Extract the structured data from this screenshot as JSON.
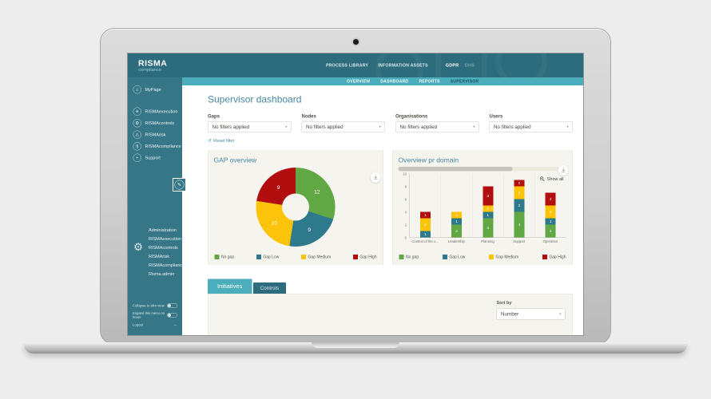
{
  "header": {
    "logo": {
      "title": "RISMA",
      "subtitle": "compliance"
    },
    "nav": [
      "PROCESS LIBRARY",
      "INFORMATION ASSETS"
    ],
    "solutions": [
      {
        "label": "GDPR",
        "active": true
      },
      {
        "label": "OHS",
        "active": false
      }
    ]
  },
  "subnav": {
    "items": [
      {
        "label": "OVERVIEW",
        "active": false
      },
      {
        "label": "DASHBOARD",
        "active": false
      },
      {
        "label": "REPORTS",
        "active": false
      },
      {
        "label": "SUPERVISOR",
        "active": true
      }
    ]
  },
  "sidebar": {
    "items": [
      {
        "label": "MyPage"
      },
      {
        "label": "RISMAexecution"
      },
      {
        "label": "RISMAcontrols"
      },
      {
        "label": "RISMArisk"
      },
      {
        "label": "RISMAcompliance"
      },
      {
        "label": "Support"
      }
    ],
    "admin": {
      "items": [
        "Administration",
        "RISMAexecution",
        "RISMAcontrols",
        "RISMArisk",
        "RISMAcompliance",
        "Risma.admin"
      ]
    },
    "footer": {
      "collapse_label": "Collapse to slim view",
      "hover_label": "Expand this menu on hover",
      "logout_label": "Logout"
    }
  },
  "icons": {
    "home": "⌂",
    "execution": "✈",
    "controls": "⚙",
    "risk": "⚠",
    "compliance": "§",
    "support": "+",
    "edit": "✎",
    "gear": "⚙",
    "logout": "→",
    "reset": "↺",
    "caret": "▼"
  },
  "main": {
    "title": "Supervisor dashboard",
    "filters": [
      {
        "label": "Gaps",
        "value": "No filters applied"
      },
      {
        "label": "Nodes",
        "value": "No filters applied"
      },
      {
        "label": "Organisations",
        "value": "No filters applied"
      },
      {
        "label": "Users",
        "value": "No filters applied"
      }
    ],
    "reset_label": "Reset filter",
    "tabs": [
      {
        "label": "Initiatives",
        "active": true
      },
      {
        "label": "Controls",
        "active": false
      }
    ],
    "sort": {
      "label": "Sort by",
      "value": "Number"
    }
  },
  "colors": {
    "header_teal": "#2c6c7c",
    "sidebar_teal": "#367686",
    "subnav_teal": "#4caebb",
    "title_blue": "#4787a3",
    "panel_bg": "#f6f4ee",
    "no_gap_green": "#61a744",
    "gap_low_teal": "#2e7a8c",
    "gap_medium_yellow": "#fcc30b",
    "gap_high_red": "#b20e10"
  },
  "chart_data": [
    {
      "type": "pie",
      "donut": true,
      "title": "GAP overview",
      "labels": [
        "No gap",
        "Gap Low",
        "Gap Medium",
        "Gap High"
      ],
      "values": [
        12,
        9,
        10,
        9
      ],
      "colors": [
        "#61a744",
        "#2e7a8c",
        "#fcc30b",
        "#b20e10"
      ],
      "legend_position": "bottom",
      "start_angle_deg": 0,
      "direction": "clockwise"
    },
    {
      "type": "bar",
      "stacked": true,
      "title": "Overview pr domain",
      "categories": [
        "Context of the o...",
        "Leadership",
        "Planning",
        "Support",
        "Operation"
      ],
      "series": [
        {
          "name": "No gap",
          "color": "#61a744",
          "values": [
            0,
            2,
            3,
            4,
            2
          ]
        },
        {
          "name": "Gap Low",
          "color": "#2e7a8c",
          "values": [
            1,
            1,
            1,
            2,
            1
          ]
        },
        {
          "name": "Gap Medium",
          "color": "#fcc30b",
          "values": [
            2,
            1,
            1,
            2,
            2
          ]
        },
        {
          "name": "Gap High",
          "color": "#b20e10",
          "values": [
            1,
            0,
            3,
            1,
            2
          ]
        }
      ],
      "totals": [
        4,
        4,
        8,
        9,
        7
      ],
      "ylim": [
        0,
        10
      ],
      "yticks": [
        0,
        2,
        4,
        6,
        8,
        10
      ],
      "grid": "vertical-dividers",
      "legend_position": "bottom",
      "show_all_label": "Show all"
    }
  ]
}
